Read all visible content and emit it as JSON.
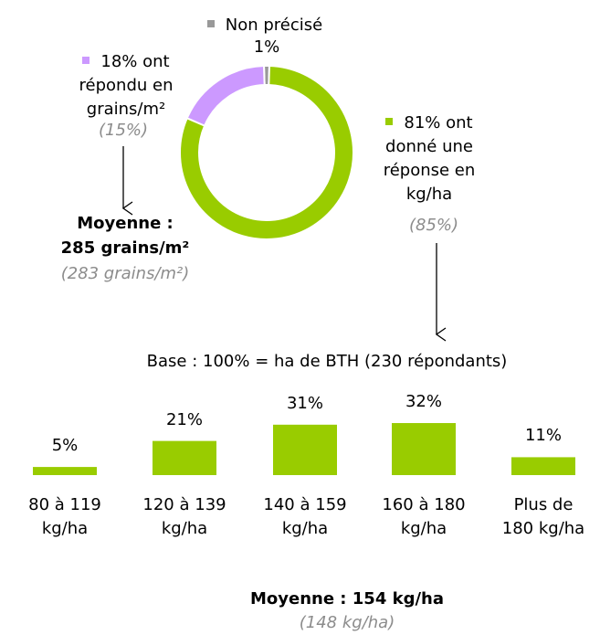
{
  "chart_data": [
    {
      "type": "pie",
      "donut": true,
      "categories": [
        "Non précisé",
        "ont donné une réponse en kg/ha",
        "ont répondu en grains/m²"
      ],
      "values": [
        1,
        81,
        18
      ],
      "value_labels": [
        "1%",
        "81%",
        "18%"
      ],
      "colors": [
        "#999999",
        "#99cc00",
        "#cc99ff"
      ]
    },
    {
      "type": "bar",
      "note": "Base : 100% = ha de BTH (230 répondants)",
      "categories": [
        "80 à 119 kg/ha",
        "120 à 139 kg/ha",
        "140 à 159 kg/ha",
        "160 à 180 kg/ha",
        "Plus de 180 kg/ha"
      ],
      "values": [
        5,
        21,
        31,
        32,
        11
      ],
      "value_labels": [
        "5%",
        "21%",
        "31%",
        "32%",
        "11%"
      ],
      "color": "#99cc00"
    }
  ],
  "annotations": {
    "kgha_previous": "(85%)",
    "grains_previous": "(15%)",
    "grains_mean_title": "Moyenne :",
    "grains_mean": "285 grains/m²",
    "grains_mean_previous": "(283 grains/m²)",
    "kgha_mean": "Moyenne : 154 kg/ha",
    "kgha_mean_previous": "(148 kg/ha)"
  }
}
